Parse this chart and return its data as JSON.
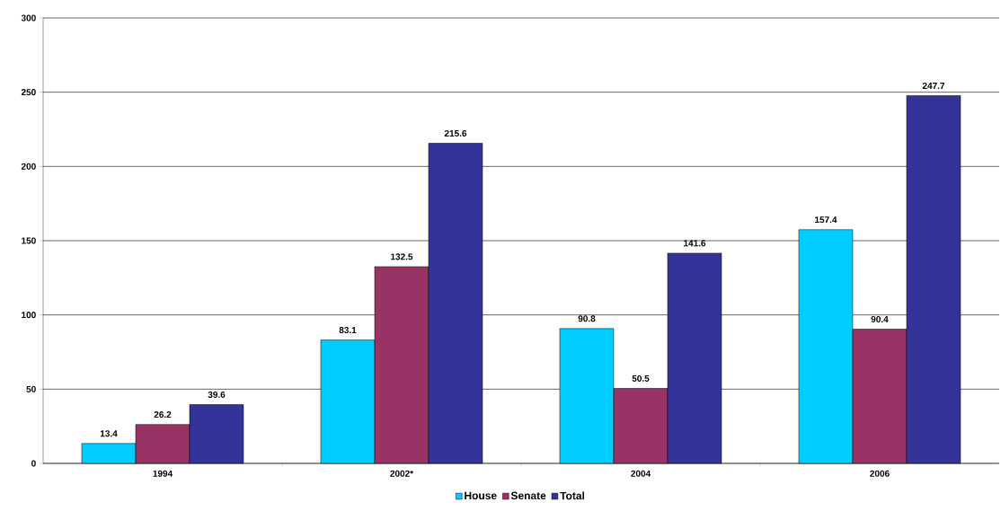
{
  "chart_data": {
    "type": "bar",
    "categories": [
      "1994",
      "2002*",
      "2004",
      "2006"
    ],
    "series": [
      {
        "name": "House",
        "color": "#00ccff",
        "values": [
          13.4,
          83.1,
          90.8,
          157.4
        ]
      },
      {
        "name": "Senate",
        "color": "#993366",
        "values": [
          26.2,
          132.5,
          50.5,
          90.4
        ]
      },
      {
        "name": "Total",
        "color": "#333399",
        "values": [
          39.6,
          215.6,
          141.6,
          247.7
        ]
      }
    ],
    "ylim": [
      0,
      300
    ],
    "yticks": [
      0,
      50,
      100,
      150,
      200,
      250,
      300
    ],
    "grid": "y",
    "legend": "bottom",
    "data_labels": true
  }
}
